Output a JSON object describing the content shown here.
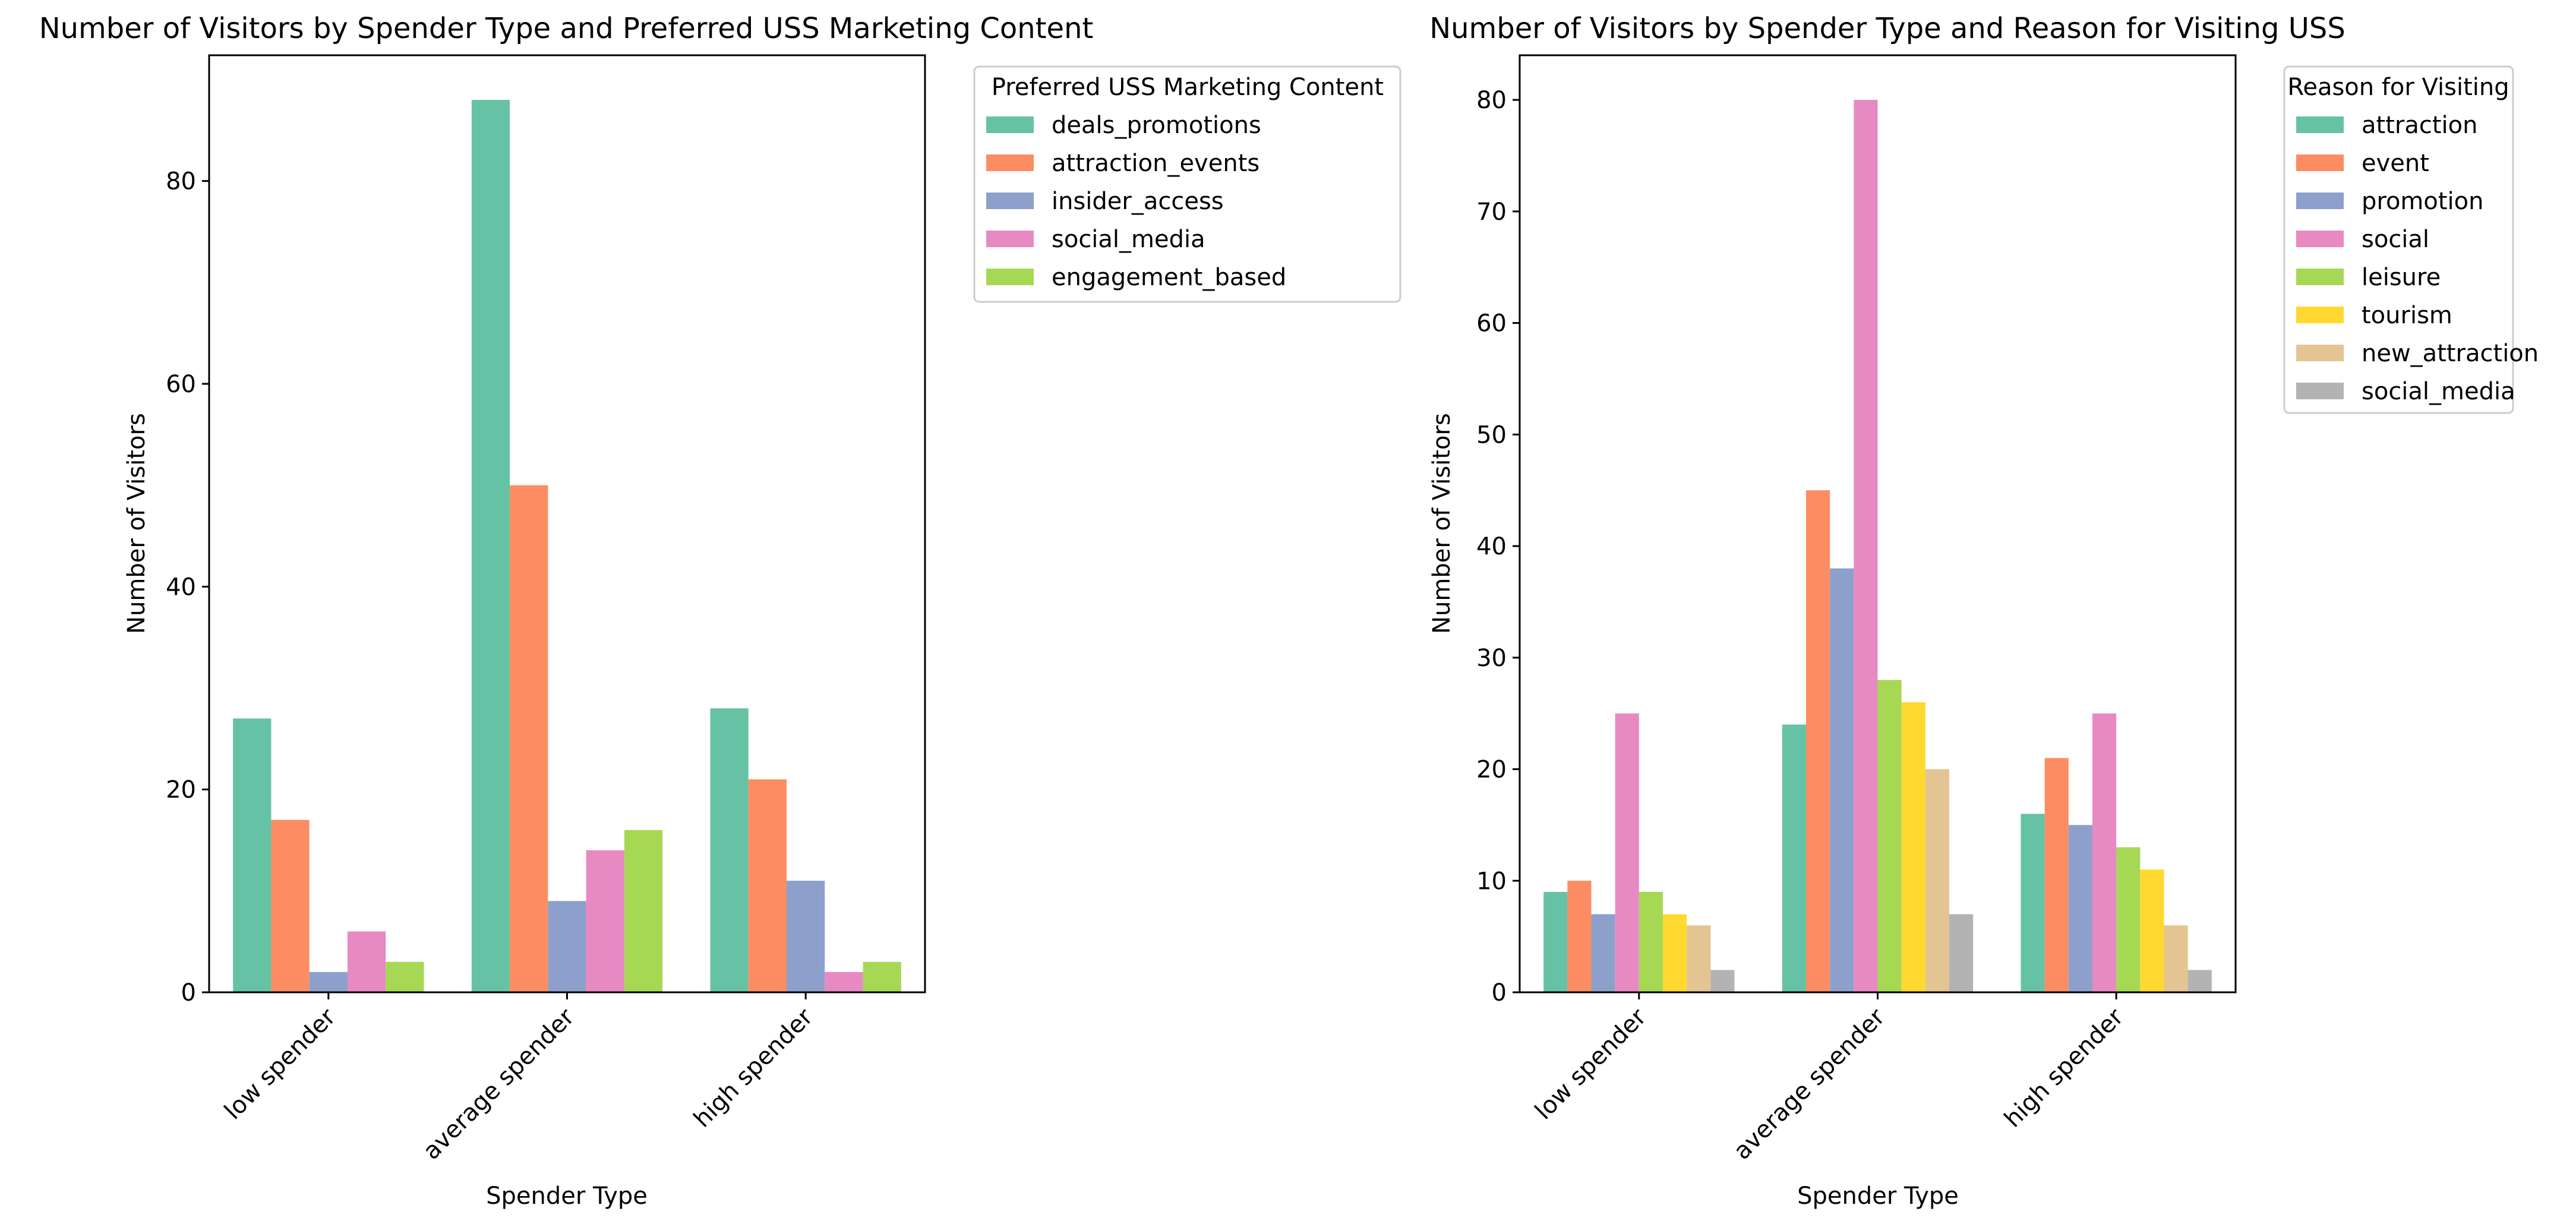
{
  "chart_data": [
    {
      "type": "bar",
      "title": "Number of Visitors by Spender Type and Preferred USS Marketing Content",
      "xlabel": "Spender Type",
      "ylabel": "Number of Visitors",
      "categories": [
        "low spender",
        "average spender",
        "high spender"
      ],
      "ylim": [
        0,
        92.4
      ],
      "yticks": [
        0,
        20,
        40,
        60,
        80
      ],
      "grid": false,
      "legend_title": "Preferred USS Marketing Content",
      "legend_position": "outside top-right",
      "series": [
        {
          "name": "deals_promotions",
          "color": "#66c2a5",
          "values": [
            27,
            88,
            28
          ]
        },
        {
          "name": "attraction_events",
          "color": "#fc8d62",
          "values": [
            17,
            50,
            21
          ]
        },
        {
          "name": "insider_access",
          "color": "#8da0cb",
          "values": [
            2,
            9,
            11
          ]
        },
        {
          "name": "social_media",
          "color": "#e78ac3",
          "values": [
            6,
            14,
            2
          ]
        },
        {
          "name": "engagement_based",
          "color": "#a6d854",
          "values": [
            3,
            16,
            3
          ]
        }
      ]
    },
    {
      "type": "bar",
      "title": "Number of Visitors by Spender Type and Reason for Visiting USS",
      "xlabel": "Spender Type",
      "ylabel": "Number of Visitors",
      "categories": [
        "low spender",
        "average spender",
        "high spender"
      ],
      "ylim": [
        0,
        84
      ],
      "yticks": [
        0,
        10,
        20,
        30,
        40,
        50,
        60,
        70,
        80
      ],
      "grid": false,
      "legend_title": "Reason for Visiting",
      "legend_position": "outside top-right",
      "series": [
        {
          "name": "attraction",
          "color": "#66c2a5",
          "values": [
            9,
            24,
            16
          ]
        },
        {
          "name": "event",
          "color": "#fc8d62",
          "values": [
            10,
            45,
            21
          ]
        },
        {
          "name": "promotion",
          "color": "#8da0cb",
          "values": [
            7,
            38,
            15
          ]
        },
        {
          "name": "social",
          "color": "#e78ac3",
          "values": [
            25,
            80,
            25
          ]
        },
        {
          "name": "leisure",
          "color": "#a6d854",
          "values": [
            9,
            28,
            13
          ]
        },
        {
          "name": "tourism",
          "color": "#ffd92f",
          "values": [
            7,
            26,
            11
          ]
        },
        {
          "name": "new_attraction",
          "color": "#e5c494",
          "values": [
            6,
            20,
            6
          ]
        },
        {
          "name": "social_media",
          "color": "#b3b3b3",
          "values": [
            2,
            7,
            2
          ]
        }
      ]
    }
  ]
}
